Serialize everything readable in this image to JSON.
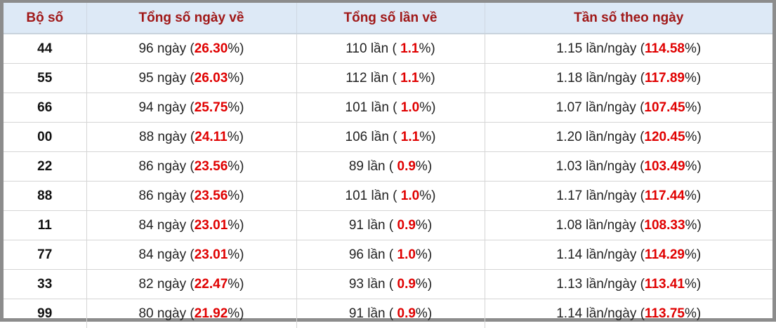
{
  "table": {
    "headers": [
      "Bộ số",
      "Tổng số ngày về",
      "Tổng số lần về",
      "Tần số theo ngày"
    ],
    "rows": [
      [
        "44",
        [
          "96 ngày (",
          "26.30",
          "%)"
        ],
        [
          "110 lần ( ",
          "1.1",
          "%)"
        ],
        [
          "1.15 lần/ngày (",
          "114.58",
          "%)"
        ]
      ],
      [
        "55",
        [
          "95 ngày (",
          "26.03",
          "%)"
        ],
        [
          "112 lần ( ",
          "1.1",
          "%)"
        ],
        [
          "1.18 lần/ngày (",
          "117.89",
          "%)"
        ]
      ],
      [
        "66",
        [
          "94 ngày (",
          "25.75",
          "%)"
        ],
        [
          "101 lần ( ",
          "1.0",
          "%)"
        ],
        [
          "1.07 lần/ngày (",
          "107.45",
          "%)"
        ]
      ],
      [
        "00",
        [
          "88 ngày (",
          "24.11",
          "%)"
        ],
        [
          "106 lần ( ",
          "1.1",
          "%)"
        ],
        [
          "1.20 lần/ngày (",
          "120.45",
          "%)"
        ]
      ],
      [
        "22",
        [
          "86 ngày (",
          "23.56",
          "%)"
        ],
        [
          "89 lần ( ",
          "0.9",
          "%)"
        ],
        [
          "1.03 lần/ngày (",
          "103.49",
          "%)"
        ]
      ],
      [
        "88",
        [
          "86 ngày (",
          "23.56",
          "%)"
        ],
        [
          "101 lần ( ",
          "1.0",
          "%)"
        ],
        [
          "1.17 lần/ngày (",
          "117.44",
          "%)"
        ]
      ],
      [
        "11",
        [
          "84 ngày (",
          "23.01",
          "%)"
        ],
        [
          "91 lần ( ",
          "0.9",
          "%)"
        ],
        [
          "1.08 lần/ngày (",
          "108.33",
          "%)"
        ]
      ],
      [
        "77",
        [
          "84 ngày (",
          "23.01",
          "%)"
        ],
        [
          "96 lần ( ",
          "1.0",
          "%)"
        ],
        [
          "1.14 lần/ngày (",
          "114.29",
          "%)"
        ]
      ],
      [
        "33",
        [
          "82 ngày (",
          "22.47",
          "%)"
        ],
        [
          "93 lần ( ",
          "0.9",
          "%)"
        ],
        [
          "1.13 lần/ngày (",
          "113.41",
          "%)"
        ]
      ],
      [
        "99",
        [
          "80 ngày (",
          "21.92",
          "%)"
        ],
        [
          "91 lần ( ",
          "0.9",
          "%)"
        ],
        [
          "1.14 lần/ngày (",
          "113.75",
          "%)"
        ]
      ]
    ]
  }
}
